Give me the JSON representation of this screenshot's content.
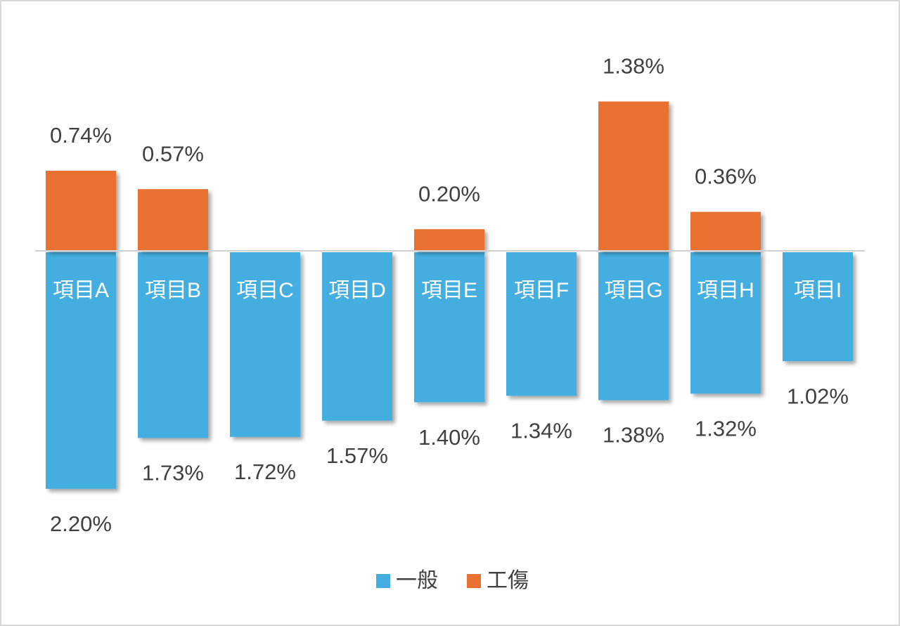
{
  "chart_data": {
    "type": "bar",
    "categories": [
      "項目A",
      "項目B",
      "項目C",
      "項目D",
      "項目E",
      "項目F",
      "項目G",
      "項目H",
      "項目I"
    ],
    "series": [
      {
        "name": "一般",
        "color": "#45aee0",
        "values": [
          2.2,
          1.73,
          1.72,
          1.57,
          1.4,
          1.34,
          1.38,
          1.32,
          1.02
        ],
        "value_labels": [
          "2.20%",
          "1.73%",
          "1.72%",
          "1.57%",
          "1.40%",
          "1.34%",
          "1.38%",
          "1.32%",
          "1.02%"
        ]
      },
      {
        "name": "工傷",
        "color": "#e87131",
        "values": [
          0.74,
          0.57,
          null,
          null,
          0.2,
          null,
          1.38,
          0.36,
          null
        ],
        "value_labels": [
          "0.74%",
          "0.57%",
          null,
          null,
          "0.20%",
          null,
          "1.38%",
          "0.36%",
          null
        ]
      }
    ]
  }
}
